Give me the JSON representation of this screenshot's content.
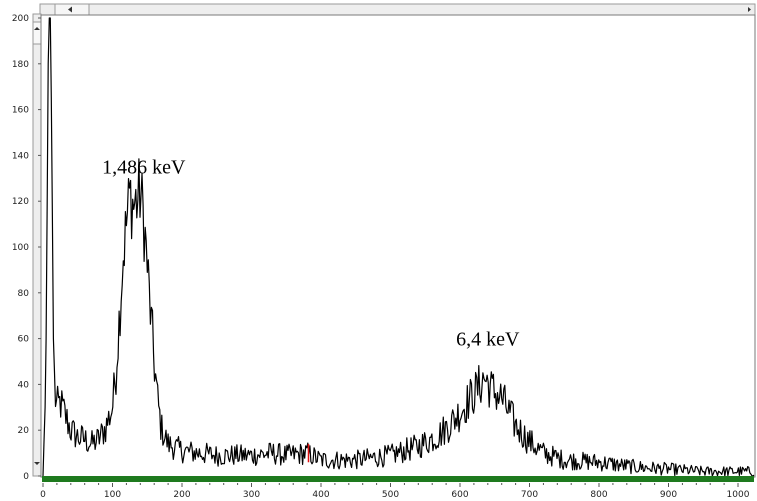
{
  "chart_data": {
    "type": "line",
    "title": "",
    "xlabel": "",
    "ylabel": "",
    "xlim": [
      0,
      1023
    ],
    "ylim": [
      0,
      200
    ],
    "x_ticks": [
      0,
      100,
      200,
      300,
      400,
      500,
      600,
      700,
      800,
      900,
      1000
    ],
    "y_ticks": [
      0,
      20,
      40,
      60,
      80,
      100,
      120,
      140,
      160,
      180,
      200
    ],
    "grid": false,
    "legend": "none",
    "series": [
      {
        "color": "#000000",
        "points": [
          [
            0,
            0
          ],
          [
            4,
            40
          ],
          [
            6,
            120
          ],
          [
            8,
            200
          ],
          [
            11,
            200
          ],
          [
            13,
            130
          ],
          [
            15,
            60
          ],
          [
            17,
            36
          ],
          [
            20,
            30
          ],
          [
            25,
            32
          ],
          [
            30,
            28
          ],
          [
            35,
            24
          ],
          [
            40,
            20
          ],
          [
            50,
            17
          ],
          [
            60,
            16
          ],
          [
            70,
            14
          ],
          [
            80,
            16
          ],
          [
            90,
            21
          ],
          [
            100,
            30
          ],
          [
            105,
            46
          ],
          [
            110,
            70
          ],
          [
            115,
            95
          ],
          [
            120,
            110
          ],
          [
            125,
            123
          ],
          [
            130,
            118
          ],
          [
            135,
            120
          ],
          [
            140,
            124
          ],
          [
            145,
            112
          ],
          [
            150,
            92
          ],
          [
            155,
            70
          ],
          [
            160,
            50
          ],
          [
            165,
            33
          ],
          [
            170,
            21
          ],
          [
            180,
            14
          ],
          [
            200,
            11
          ],
          [
            250,
            9
          ],
          [
            300,
            9
          ],
          [
            330,
            10
          ],
          [
            350,
            9
          ],
          [
            380,
            10
          ],
          [
            400,
            7
          ],
          [
            450,
            7
          ],
          [
            500,
            9
          ],
          [
            540,
            13
          ],
          [
            570,
            18
          ],
          [
            590,
            24
          ],
          [
            610,
            32
          ],
          [
            625,
            38
          ],
          [
            635,
            43
          ],
          [
            645,
            38
          ],
          [
            660,
            34
          ],
          [
            670,
            28
          ],
          [
            680,
            22
          ],
          [
            700,
            15
          ],
          [
            720,
            10
          ],
          [
            750,
            7
          ],
          [
            800,
            6
          ],
          [
            850,
            4
          ],
          [
            900,
            3
          ],
          [
            950,
            2
          ],
          [
            1000,
            2
          ],
          [
            1023,
            2
          ]
        ]
      }
    ],
    "annotations": [
      {
        "text": "1,486 keV",
        "x": 145,
        "y": 132
      },
      {
        "text": "6,4 keV",
        "x": 640,
        "y": 57
      }
    ],
    "colors": {
      "line": "#000000",
      "baseline_bar": "#1e7a1e",
      "frame": "#808080",
      "marker": "#e01010"
    },
    "marker_x": 382
  }
}
